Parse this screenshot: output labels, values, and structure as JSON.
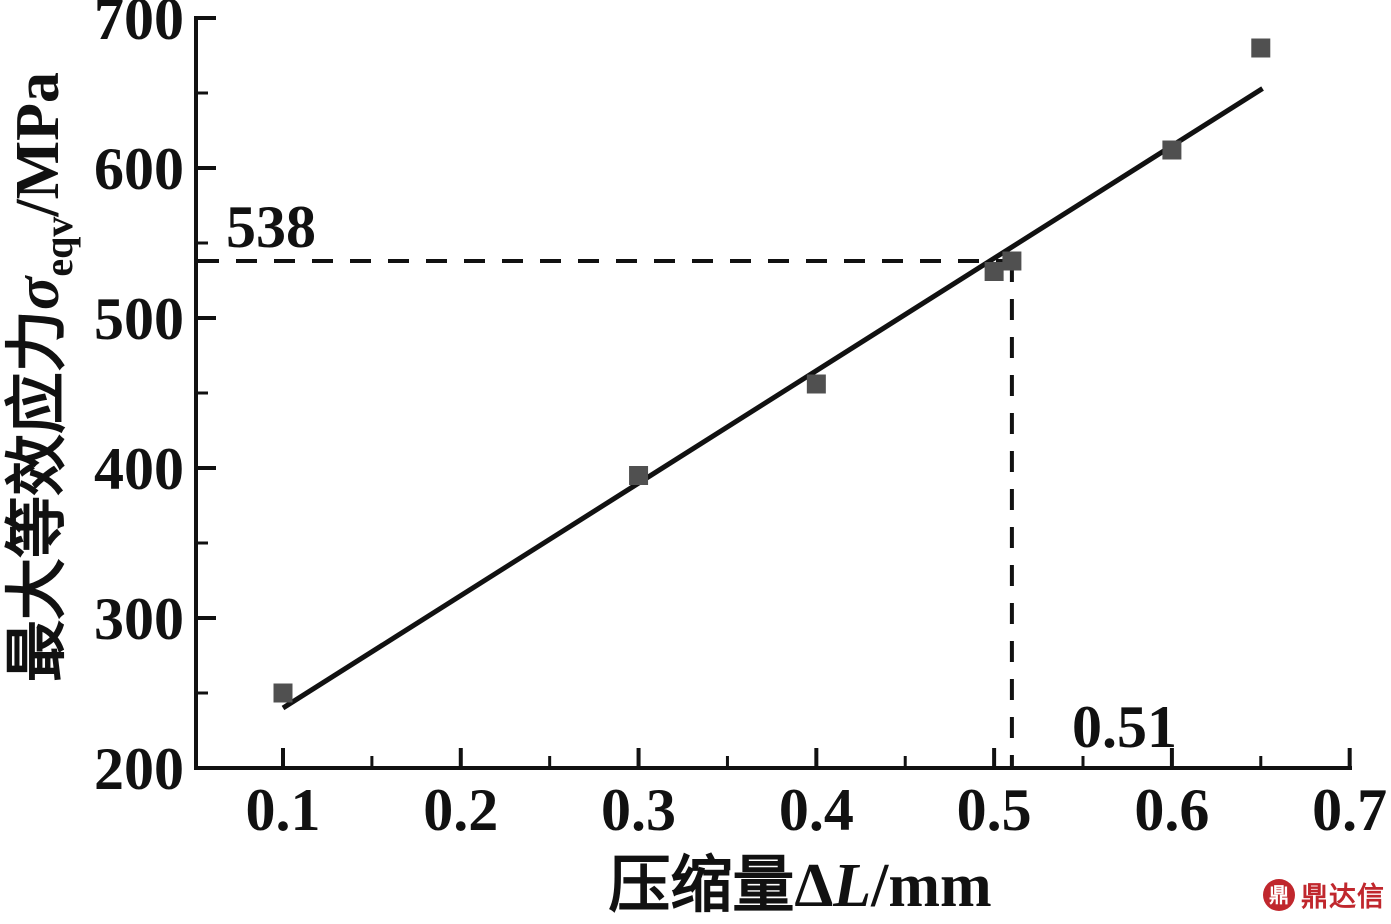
{
  "chart_data": {
    "type": "scatter",
    "title": "",
    "xlabel": "压缩量ΔL/mm",
    "xlabel_prefix": "压缩量Δ",
    "xlabel_var": "L",
    "xlabel_suffix": "/mm",
    "ylabel": "最大等效应力σeqv/MPa",
    "ylabel_prefix": "最大等效应力",
    "ylabel_sigma": "σ",
    "ylabel_sub": "eqv",
    "ylabel_suffix": "/MPa",
    "xlim": [
      0.05,
      0.7
    ],
    "ylim": [
      200,
      700
    ],
    "grid": false,
    "legend_position": null,
    "x_ticks": {
      "major": [
        0.1,
        0.2,
        0.3,
        0.4,
        0.5,
        0.6,
        0.7
      ],
      "major_labels": [
        "0.1",
        "0.2",
        "0.3",
        "0.4",
        "0.5",
        "0.6",
        "0.7"
      ],
      "minor": [
        0.15,
        0.25,
        0.35,
        0.45,
        0.55,
        0.65
      ]
    },
    "y_ticks": {
      "major": [
        200,
        300,
        400,
        500,
        600,
        700
      ],
      "major_labels": [
        "200",
        "300",
        "400",
        "500",
        "600",
        "700"
      ],
      "minor": [
        250,
        350,
        450,
        550,
        650
      ]
    },
    "points": [
      [
        0.1,
        250
      ],
      [
        0.3,
        395
      ],
      [
        0.4,
        456
      ],
      [
        0.5,
        531
      ],
      [
        0.51,
        538
      ],
      [
        0.6,
        612
      ],
      [
        0.65,
        680
      ]
    ],
    "fit_line": {
      "x1": 0.1,
      "y1": 240,
      "x2": 0.651,
      "y2": 653
    },
    "marker": {
      "x": 0.51,
      "y": 538,
      "x_label": "0.51",
      "y_label": "538"
    },
    "colors": {
      "point": "#505050",
      "line": "#111111",
      "axis": "#111111",
      "text": "#111111"
    }
  },
  "watermark": {
    "text": "鼎达信",
    "logo_glyph": "鼎",
    "color": "#c0272d"
  }
}
